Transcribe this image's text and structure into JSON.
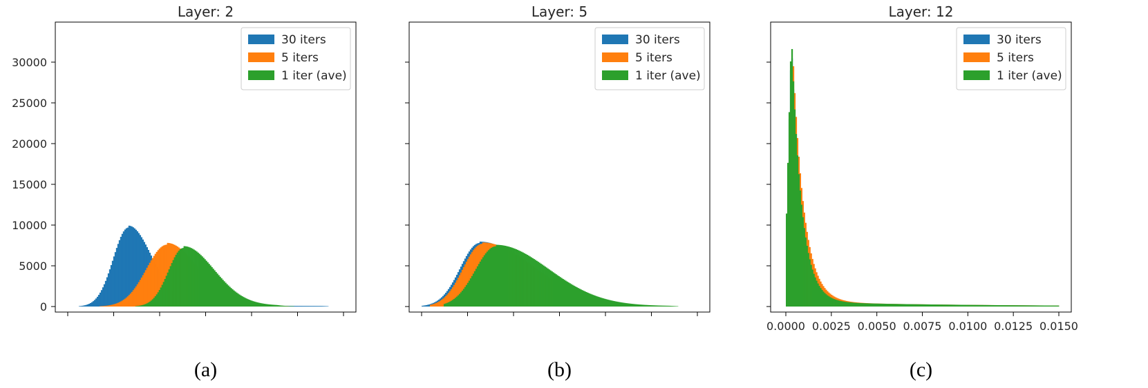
{
  "colors": {
    "series_30": "#1f77b4",
    "series_5": "#ff7f0e",
    "series_1": "#2ca02c"
  },
  "chart_data": [
    {
      "type": "histogram",
      "title": "Layer: 2",
      "caption": "(a)",
      "y_ticks": [
        "0",
        "5000",
        "10000",
        "15000",
        "20000",
        "25000",
        "30000"
      ],
      "x_ticks": [
        "",
        "",
        "",
        "",
        "",
        "",
        ""
      ],
      "legend": "top-right",
      "ylim": [
        0,
        35000
      ],
      "series": [
        {
          "name": "30 iters",
          "color": "#1f77b4",
          "peak_x": 0.22,
          "peak_y": 9700,
          "sigma_left": 0.055,
          "sigma_right": 0.085,
          "tail": 0.024,
          "start": 0.0,
          "end": 0.98
        },
        {
          "name": "5 iters",
          "color": "#ff7f0e",
          "peak_x": 0.36,
          "peak_y": 7600,
          "sigma_left": 0.075,
          "sigma_right": 0.11,
          "tail": 0.028,
          "start": 0.11,
          "end": 0.83
        },
        {
          "name": "1 iter (ave)",
          "color": "#2ca02c",
          "peak_x": 0.42,
          "peak_y": 7200,
          "sigma_left": 0.055,
          "sigma_right": 0.11,
          "tail": 0.03,
          "start": 0.24,
          "end": 0.82
        }
      ]
    },
    {
      "type": "histogram",
      "title": "Layer: 5",
      "caption": "(b)",
      "y_ticks": [
        "",
        "",
        "",
        "",
        "",
        "",
        ""
      ],
      "x_ticks": [
        "",
        "",
        "",
        "",
        "",
        "",
        ""
      ],
      "legend": "top-right",
      "ylim": [
        0,
        35000
      ],
      "series": [
        {
          "name": "30 iters",
          "color": "#1f77b4",
          "peak_x": 0.21,
          "peak_y": 7800,
          "sigma_left": 0.07,
          "sigma_right": 0.19,
          "tail": 0.022,
          "start": 0.0,
          "end": 0.93
        },
        {
          "name": "5 iters",
          "color": "#ff7f0e",
          "peak_x": 0.22,
          "peak_y": 7700,
          "sigma_left": 0.07,
          "sigma_right": 0.19,
          "tail": 0.022,
          "start": 0.03,
          "end": 0.93
        },
        {
          "name": "1 iter (ave)",
          "color": "#2ca02c",
          "peak_x": 0.27,
          "peak_y": 7400,
          "sigma_left": 0.075,
          "sigma_right": 0.19,
          "tail": 0.024,
          "start": 0.08,
          "end": 0.96
        }
      ]
    },
    {
      "type": "histogram",
      "title": "Layer: 12",
      "caption": "(c)",
      "y_ticks": [
        "",
        "",
        "",
        "",
        "",
        "",
        ""
      ],
      "x_ticks": [
        "0.0000",
        "0.0025",
        "0.0050",
        "0.0075",
        "0.0100",
        "0.0125",
        "0.0150"
      ],
      "x_range": [
        0.0,
        0.015
      ],
      "legend": "top-right",
      "ylim": [
        0,
        35000
      ],
      "series": [
        {
          "name": "30 iters",
          "color": "#1f77b4",
          "peak_x": 0.0003,
          "peak_y": 32000,
          "decay": 0.00055,
          "tail": 0.018
        },
        {
          "name": "5 iters",
          "color": "#ff7f0e",
          "peak_x": 0.0004,
          "peak_y": 29500,
          "decay": 0.00062,
          "tail": 0.02
        },
        {
          "name": "1 iter (ave)",
          "color": "#2ca02c",
          "peak_x": 0.0003,
          "peak_y": 33200,
          "decay": 0.00055,
          "tail": 0.018
        }
      ]
    }
  ]
}
